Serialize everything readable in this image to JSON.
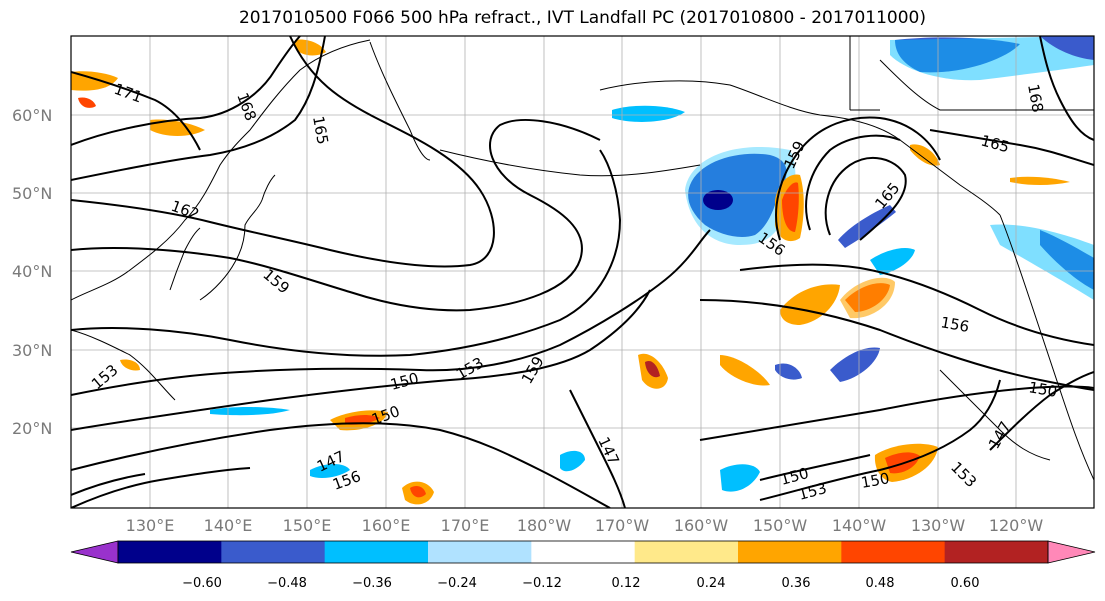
{
  "title": "2017010500 F066 500 hPa refract., IVT Landfall PC (2017010800 - 2017011000)",
  "lat_labels": [
    "60°N",
    "50°N",
    "40°N",
    "30°N",
    "20°N"
  ],
  "lon_labels": [
    "130°E",
    "140°E",
    "150°E",
    "160°E",
    "170°E",
    "180°W",
    "170°W",
    "160°W",
    "150°W",
    "140°W",
    "130°W",
    "120°W"
  ],
  "contour_labels": [
    "171",
    "168",
    "165",
    "162",
    "159",
    "153",
    "150",
    "153",
    "159",
    "156",
    "159",
    "165",
    "165",
    "168",
    "156",
    "150",
    "147",
    "153",
    "150",
    "153",
    "150",
    "147",
    "147",
    "156",
    "150"
  ],
  "colorbar": {
    "ticks": [
      "−0.60",
      "−0.48",
      "−0.36",
      "−0.24",
      "−0.12",
      "0.12",
      "0.24",
      "0.36",
      "0.48",
      "0.60"
    ],
    "colors": [
      "#9932CC",
      "#00008B",
      "#3A5BCC",
      "#00BFFF",
      "#B0E2FF",
      "#FFFFFF",
      "#FFE98A",
      "#FFA500",
      "#FF4500",
      "#B22222",
      "#FF88B8"
    ]
  }
}
